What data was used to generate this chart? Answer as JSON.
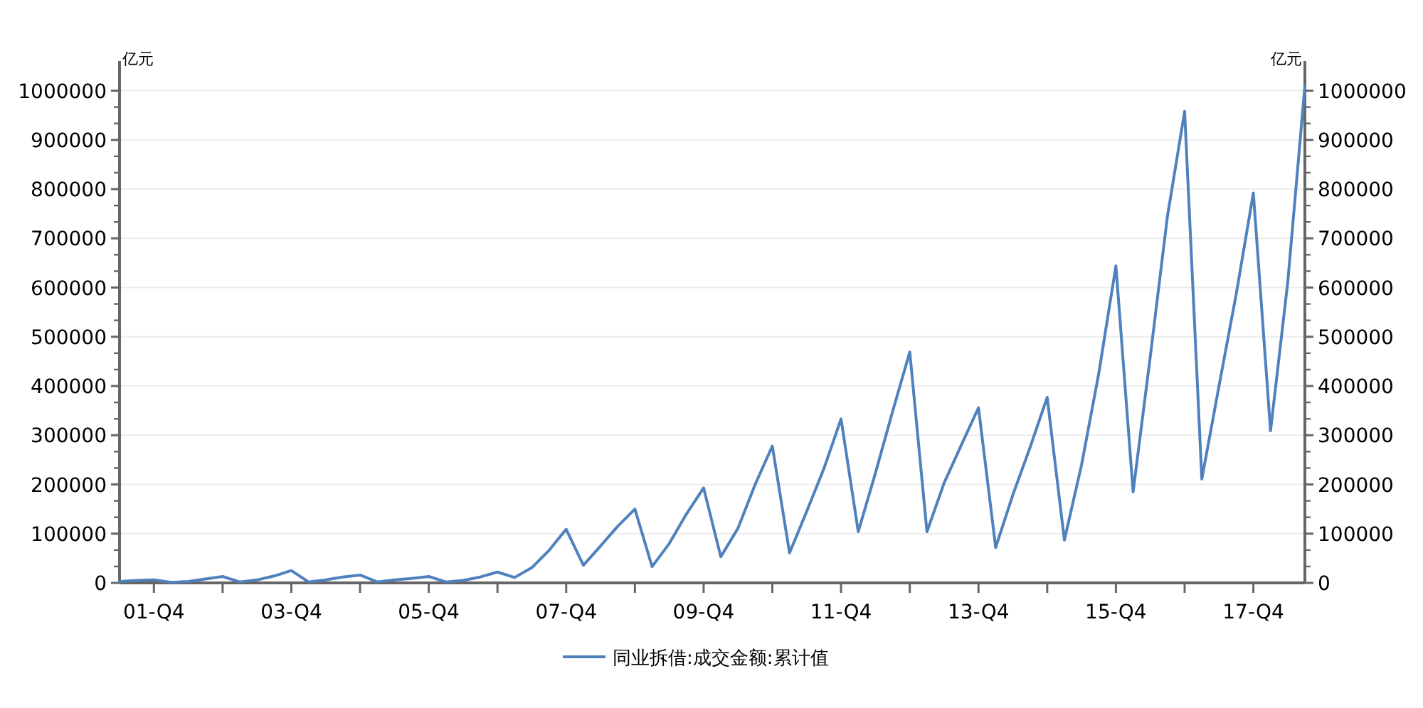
{
  "chart_data": {
    "type": "line",
    "ylabel": "亿元",
    "y2label": "亿元",
    "categories": [
      null,
      null,
      "01-Q4",
      null,
      null,
      null,
      null,
      null,
      null,
      null,
      "03-Q4",
      null,
      null,
      null,
      null,
      null,
      null,
      null,
      "05-Q4",
      null,
      null,
      null,
      null,
      null,
      null,
      null,
      "07-Q4",
      null,
      null,
      null,
      null,
      null,
      null,
      null,
      "09-Q4",
      null,
      null,
      null,
      null,
      null,
      null,
      null,
      "11-Q4",
      null,
      null,
      null,
      null,
      null,
      null,
      null,
      "13-Q4",
      null,
      null,
      null,
      null,
      null,
      null,
      null,
      "15-Q4",
      null,
      null,
      null,
      null,
      null,
      null,
      null,
      "17-Q4",
      null,
      null,
      null
    ],
    "series": [
      {
        "name": "同业拆借:成交金额:累计值",
        "color": "#4f81bd",
        "values": [
          3000,
          5000,
          6000,
          1000,
          3000,
          8000,
          13000,
          2000,
          6000,
          14000,
          25000,
          2000,
          6000,
          12000,
          16000,
          2000,
          6000,
          9000,
          13000,
          2000,
          5000,
          12000,
          22000,
          11000,
          31000,
          66000,
          109000,
          36000,
          75000,
          115000,
          150000,
          33000,
          80000,
          140000,
          193000,
          53000,
          111000,
          200000,
          278000,
          61000,
          145000,
          232000,
          333000,
          104000,
          223000,
          348000,
          469000,
          104000,
          203000,
          280000,
          356000,
          72000,
          179000,
          275000,
          377000,
          87000,
          240000,
          425000,
          644000,
          185000,
          460000,
          745000,
          958000,
          211000,
          400000,
          586000,
          792000,
          309000,
          610000,
          1010000
        ]
      }
    ],
    "ylim": [
      0,
      1060000
    ],
    "yticks": [
      0,
      100000,
      200000,
      300000,
      400000,
      500000,
      600000,
      700000,
      800000,
      900000,
      1000000
    ],
    "y2lim": [
      0,
      1060000
    ],
    "y2ticks": [
      0,
      100000,
      200000,
      300000,
      400000,
      500000,
      600000,
      700000,
      800000,
      900000,
      1000000
    ],
    "grid": "y",
    "legend": "bottom",
    "marker": "none",
    "line_style": "solid"
  }
}
